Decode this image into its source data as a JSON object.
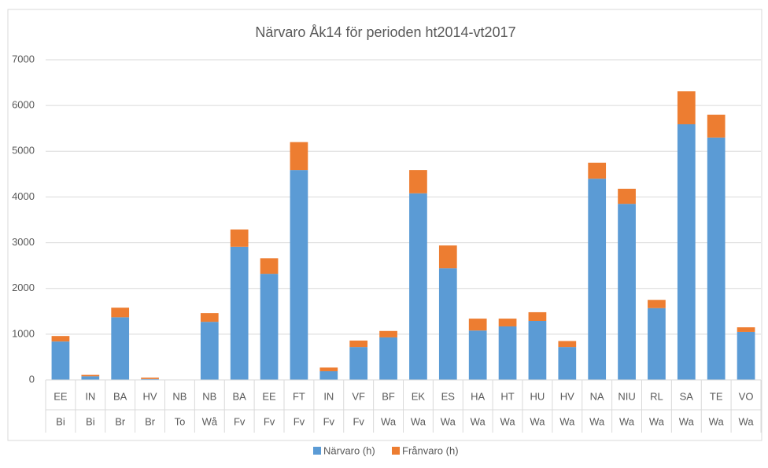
{
  "chart_data": {
    "type": "stacked_bar",
    "title": "Närvaro Åk14 för perioden ht2014-vt2017",
    "categories": [
      "EE",
      "IN",
      "BA",
      "HV",
      "NB",
      "NB",
      "BA",
      "EE",
      "FT",
      "IN",
      "VF",
      "BF",
      "EK",
      "ES",
      "HA",
      "HT",
      "HU",
      "HV",
      "NA",
      "NIU",
      "RL",
      "SA",
      "TE",
      "VO"
    ],
    "groups": [
      "Bi",
      "Bi",
      "Br",
      "Br",
      "To",
      "Wå",
      "Fv",
      "Fv",
      "Fv",
      "Fv",
      "Fv",
      "Wa",
      "Wa",
      "Wa",
      "Wa",
      "Wa",
      "Wa",
      "Wa",
      "Wa",
      "Wa",
      "Wa",
      "Wa",
      "Wa",
      "Wa"
    ],
    "series": [
      {
        "name": "Närvaro (h)",
        "color": "#5b9bd5",
        "values": [
          840,
          80,
          1370,
          20,
          0,
          1270,
          2910,
          2320,
          4590,
          190,
          720,
          930,
          4080,
          2440,
          1080,
          1170,
          1290,
          720,
          4400,
          3850,
          1570,
          5590,
          5300,
          1050
        ]
      },
      {
        "name": "Frånvaro (h)",
        "color": "#ed7d31",
        "values": [
          120,
          30,
          210,
          30,
          0,
          190,
          380,
          340,
          610,
          80,
          140,
          140,
          510,
          500,
          260,
          170,
          190,
          130,
          350,
          330,
          180,
          720,
          500,
          100
        ]
      }
    ],
    "ylim": [
      0,
      7000
    ],
    "yticks": [
      0,
      1000,
      2000,
      3000,
      4000,
      5000,
      6000,
      7000
    ],
    "grid": true,
    "legend": "bottom"
  }
}
